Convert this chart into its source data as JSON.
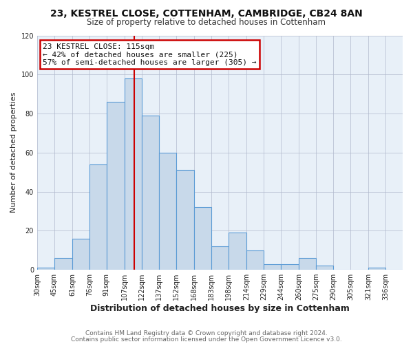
{
  "title1": "23, KESTREL CLOSE, COTTENHAM, CAMBRIDGE, CB24 8AN",
  "title2": "Size of property relative to detached houses in Cottenham",
  "xlabel": "Distribution of detached houses by size in Cottenham",
  "ylabel": "Number of detached properties",
  "bin_labels": [
    "30sqm",
    "45sqm",
    "61sqm",
    "76sqm",
    "91sqm",
    "107sqm",
    "122sqm",
    "137sqm",
    "152sqm",
    "168sqm",
    "183sqm",
    "198sqm",
    "214sqm",
    "229sqm",
    "244sqm",
    "260sqm",
    "275sqm",
    "290sqm",
    "305sqm",
    "321sqm",
    "336sqm"
  ],
  "bar_heights": [
    1,
    6,
    16,
    54,
    86,
    98,
    79,
    60,
    51,
    32,
    12,
    19,
    10,
    3,
    3,
    6,
    2,
    0,
    0,
    1,
    0
  ],
  "bar_color": "#c8d9ea",
  "bar_edge_color": "#5b9bd5",
  "vline_x": 115,
  "vline_color": "#cc0000",
  "ylim": [
    0,
    120
  ],
  "yticks": [
    0,
    20,
    40,
    60,
    80,
    100,
    120
  ],
  "annotation_title": "23 KESTREL CLOSE: 115sqm",
  "annotation_line1": "← 42% of detached houses are smaller (225)",
  "annotation_line2": "57% of semi-detached houses are larger (305) →",
  "annotation_box_color": "#ffffff",
  "annotation_box_edge": "#cc0000",
  "footer1": "Contains HM Land Registry data © Crown copyright and database right 2024.",
  "footer2": "Contains public sector information licensed under the Open Government Licence v3.0.",
  "bin_edges": [
    30,
    45,
    61,
    76,
    91,
    107,
    122,
    137,
    152,
    168,
    183,
    198,
    214,
    229,
    244,
    260,
    275,
    290,
    305,
    321,
    336,
    351
  ],
  "bg_color": "#ffffff",
  "plot_bg_color": "#e8f0f8",
  "grid_color": "#b0b8cc",
  "title1_fontsize": 10,
  "title2_fontsize": 8.5,
  "ylabel_fontsize": 8,
  "xlabel_fontsize": 9,
  "tick_fontsize": 7,
  "ann_fontsize": 8,
  "footer_fontsize": 6.5
}
